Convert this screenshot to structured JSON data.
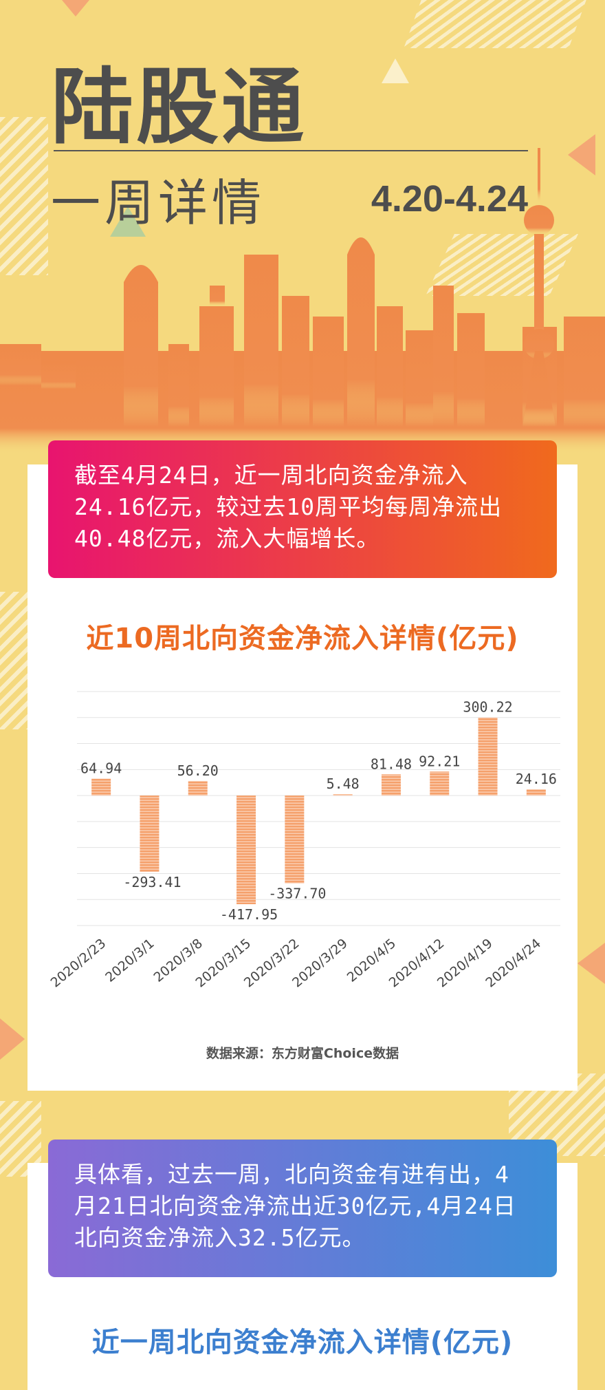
{
  "header": {
    "title": "陆股通",
    "subtitle": "一周详情",
    "date_range": "4.20-4.24"
  },
  "summary_1": "截至4月24日，近一周北向资金净流入24.16亿元，较过去10周平均每周净流出40.48亿元，流入大幅增长。",
  "summary_2": "具体看，过去一周，北向资金有进有出，4月21日北向资金净流出近30亿元,4月24日北向资金净流入32.5亿元。",
  "colors": {
    "background": "#f5d97e",
    "skyline": "#ef8a4a",
    "bar": "#f5a06b",
    "accent_orange": "#ec6a22",
    "accent_blue": "#3c7fcf"
  },
  "source_note": "数据来源：东方财富Choice数据",
  "chart_data": {
    "type": "bar",
    "title": "近10周北向资金净流入详情(亿元)",
    "categories": [
      "2020/2/23",
      "2020/3/1",
      "2020/3/8",
      "2020/3/15",
      "2020/3/22",
      "2020/3/29",
      "2020/4/5",
      "2020/4/12",
      "2020/4/19",
      "2020/4/24"
    ],
    "values": [
      64.94,
      -293.41,
      56.2,
      -417.95,
      -337.7,
      5.48,
      81.48,
      92.21,
      300.22,
      24.16
    ],
    "labels": [
      "64.94",
      "-293.41",
      "56.20",
      "-417.95",
      "-337.70",
      "5.48",
      "81.48",
      "92.21",
      "300.22",
      "24.16"
    ],
    "ylim": [
      -500,
      400
    ],
    "grid": true,
    "xlabel": "",
    "ylabel": ""
  },
  "chart_2": {
    "title": "近一周北向资金净流入详情(亿元)"
  }
}
